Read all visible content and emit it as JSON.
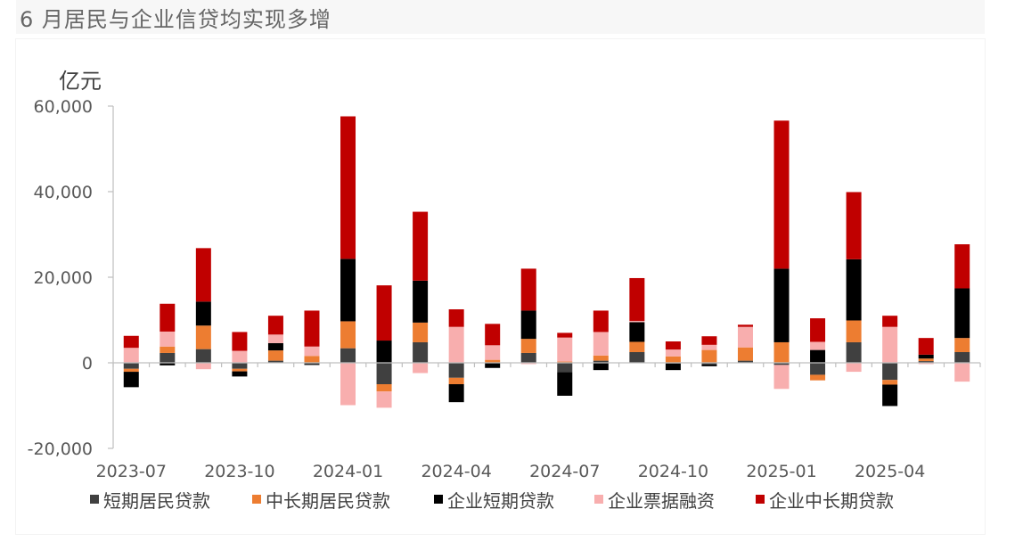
{
  "header": {
    "title": "6 月居民与企业信贷均实现多增"
  },
  "colors": {
    "short_household": "#404040",
    "long_household": "#ED7D31",
    "corp_short": "#000000",
    "bills": "#F8AEAE",
    "corp_long": "#C00000",
    "axis": "#BFBFBF",
    "tick_text": "#595959"
  },
  "chart_data": {
    "type": "bar",
    "stacked": true,
    "unit_label": "亿元",
    "ylim": [
      -20000,
      60000
    ],
    "yticks": [
      -20000,
      0,
      20000,
      40000,
      60000
    ],
    "ytick_labels": [
      "-20,000",
      "0",
      "20,000",
      "40,000",
      "60,000"
    ],
    "categories": [
      "2023-07",
      "2023-08",
      "2023-09",
      "2023-10",
      "2023-11",
      "2023-12",
      "2024-01",
      "2024-02",
      "2024-03",
      "2024-04",
      "2024-05",
      "2024-06",
      "2024-07",
      "2024-08",
      "2024-09",
      "2024-10",
      "2024-11",
      "2024-12",
      "2025-01",
      "2025-02",
      "2025-03",
      "2025-04",
      "2025-05",
      "2025-06"
    ],
    "xtick_labels": [
      "2023-07",
      "2023-10",
      "2024-01",
      "2024-04",
      "2024-07",
      "2024-10",
      "2025-01",
      "2025-04"
    ],
    "xtick_indices": [
      0,
      3,
      6,
      9,
      12,
      15,
      18,
      21
    ],
    "legend": [
      "短期居民贷款",
      "中长期居民贷款",
      "企业短期贷款",
      "企业票据融资",
      "企业中长期贷款"
    ],
    "series": [
      {
        "name": "短期居民贷款",
        "values": [
          -1400,
          2300,
          3200,
          -1400,
          500,
          -300,
          3400,
          -5000,
          4800,
          -3500,
          0,
          2300,
          -2200,
          500,
          2500,
          -200,
          -400,
          500,
          -500,
          -2800,
          4800,
          -4000,
          400,
          2500
        ]
      },
      {
        "name": "中长期居民贷款",
        "values": [
          -700,
          1500,
          5500,
          -600,
          2400,
          1600,
          6300,
          -1700,
          4600,
          -1500,
          700,
          3300,
          300,
          1200,
          2400,
          1500,
          3000,
          3100,
          4800,
          -1300,
          5100,
          -1100,
          600,
          3300
        ]
      },
      {
        "name": "企业短期贷款",
        "values": [
          -3600,
          -600,
          5600,
          -1200,
          1700,
          -200,
          14600,
          5200,
          9800,
          -4200,
          -1200,
          6600,
          -5500,
          -1700,
          4600,
          -1500,
          -400,
          0,
          17200,
          3000,
          14300,
          -5000,
          900,
          11600
        ]
      },
      {
        "name": "企业票据融资",
        "values": [
          3500,
          3500,
          -1500,
          2800,
          2000,
          2200,
          -9900,
          -3800,
          -2400,
          8400,
          3400,
          -300,
          5600,
          5500,
          300,
          1600,
          1200,
          4800,
          -5600,
          1900,
          -2100,
          8400,
          -300,
          -4400
        ]
      },
      {
        "name": "企业中长期贷款",
        "values": [
          2800,
          6500,
          12500,
          4400,
          4400,
          8400,
          33300,
          12900,
          16100,
          4100,
          5000,
          9800,
          1100,
          5000,
          10000,
          1900,
          2000,
          500,
          34600,
          5500,
          15700,
          2600,
          3900,
          10300
        ]
      }
    ]
  }
}
